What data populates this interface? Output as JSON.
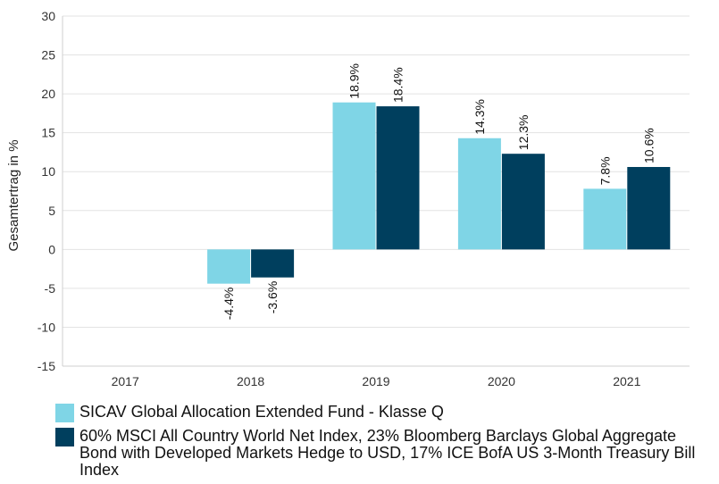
{
  "chart_data": {
    "type": "bar",
    "categories": [
      "2017",
      "2018",
      "2019",
      "2020",
      "2021"
    ],
    "series": [
      {
        "name": "SICAV Global Allocation Extended Fund - Klasse Q",
        "values": [
          null,
          -4.4,
          18.9,
          14.3,
          7.8
        ],
        "labels": [
          "",
          "-4.4%",
          "18.9%",
          "14.3%",
          "7.8%"
        ],
        "color": "#7fd5e6"
      },
      {
        "name": "60% MSCI All Country World Net Index, 23% Bloomberg Barclays Global Aggregate Bond with Developed Markets Hedge to USD, 17% ICE BofA US 3-Month Treasury Bill Index",
        "values": [
          null,
          -3.6,
          18.4,
          12.3,
          10.6
        ],
        "labels": [
          "",
          "-3.6%",
          "18.4%",
          "12.3%",
          "10.6%"
        ],
        "color": "#003f5e"
      }
    ],
    "ylabel": "Gesamtertrag in %",
    "xlabel": "",
    "ylim": [
      -15,
      30
    ],
    "yticks": [
      "30",
      "25",
      "20",
      "15",
      "10",
      "5",
      "0",
      "-5",
      "-10",
      "-15"
    ],
    "grid": true,
    "legend_position": "bottom"
  }
}
